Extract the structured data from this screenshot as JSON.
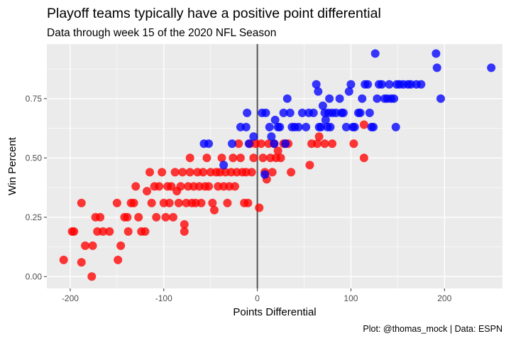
{
  "chart_data": {
    "type": "scatter",
    "title": "Playoff teams typically have a positive point differential",
    "subtitle": "Data through week 15 of the 2020 NFL Season",
    "caption": "Plot: @thomas_mock | Data: ESPN",
    "xlabel": "Points Differential",
    "ylabel": "Win Percent",
    "xlim": [
      -225,
      262
    ],
    "ylim": [
      -0.05,
      0.98
    ],
    "xticks": [
      -200,
      -100,
      0,
      100,
      200
    ],
    "xtick_labels": [
      "-200",
      "-100",
      "0",
      "100",
      "200"
    ],
    "yticks": [
      0,
      0.25,
      0.5,
      0.75
    ],
    "ytick_labels": [
      "0.00",
      "0.25",
      "0.50",
      "0.75"
    ],
    "vline_x": 0,
    "grid": true,
    "legend": "none",
    "colors": {
      "panel": "#ebebeb",
      "grid": "#ffffff",
      "vline": "#555555"
    },
    "series": [
      {
        "color": "#ff0000",
        "points": [
          [
            -207,
            0.07
          ],
          [
            -198,
            0.19
          ],
          [
            -196,
            0.19
          ],
          [
            -188,
            0.06
          ],
          [
            -188,
            0.31
          ],
          [
            -184,
            0.13
          ],
          [
            -177,
            0.0
          ],
          [
            -176,
            0.13
          ],
          [
            -173,
            0.25
          ],
          [
            -171,
            0.19
          ],
          [
            -168,
            0.25
          ],
          [
            -165,
            0.19
          ],
          [
            -158,
            0.19
          ],
          [
            -150,
            0.31
          ],
          [
            -149,
            0.07
          ],
          [
            -146,
            0.13
          ],
          [
            -142,
            0.25
          ],
          [
            -139,
            0.25
          ],
          [
            -138,
            0.19
          ],
          [
            -135,
            0.31
          ],
          [
            -132,
            0.31
          ],
          [
            -130,
            0.38
          ],
          [
            -127,
            0.25
          ],
          [
            -124,
            0.19
          ],
          [
            -120,
            0.19
          ],
          [
            -118,
            0.36
          ],
          [
            -115,
            0.44
          ],
          [
            -113,
            0.31
          ],
          [
            -110,
            0.38
          ],
          [
            -108,
            0.25
          ],
          [
            -105,
            0.38
          ],
          [
            -102,
            0.44
          ],
          [
            -100,
            0.31
          ],
          [
            -98,
            0.25
          ],
          [
            -96,
            0.38
          ],
          [
            -94,
            0.31
          ],
          [
            -92,
            0.38
          ],
          [
            -90,
            0.25
          ],
          [
            -88,
            0.44
          ],
          [
            -86,
            0.36
          ],
          [
            -84,
            0.31
          ],
          [
            -82,
            0.38
          ],
          [
            -80,
            0.44
          ],
          [
            -78,
            0.22
          ],
          [
            -78,
            0.19
          ],
          [
            -76,
            0.31
          ],
          [
            -74,
            0.38
          ],
          [
            -72,
            0.44
          ],
          [
            -72,
            0.5
          ],
          [
            -70,
            0.31
          ],
          [
            -68,
            0.38
          ],
          [
            -66,
            0.31
          ],
          [
            -64,
            0.44
          ],
          [
            -62,
            0.38
          ],
          [
            -60,
            0.31
          ],
          [
            -58,
            0.44
          ],
          [
            -56,
            0.38
          ],
          [
            -54,
            0.5
          ],
          [
            -52,
            0.38
          ],
          [
            -50,
            0.44
          ],
          [
            -48,
            0.31
          ],
          [
            -46,
            0.28
          ],
          [
            -44,
            0.44
          ],
          [
            -42,
            0.38
          ],
          [
            -40,
            0.44
          ],
          [
            -38,
            0.5
          ],
          [
            -36,
            0.38
          ],
          [
            -34,
            0.44
          ],
          [
            -32,
            0.31
          ],
          [
            -30,
            0.38
          ],
          [
            -28,
            0.44
          ],
          [
            -26,
            0.5
          ],
          [
            -24,
            0.38
          ],
          [
            -22,
            0.44
          ],
          [
            -20,
            0.56
          ],
          [
            -18,
            0.5
          ],
          [
            -16,
            0.44
          ],
          [
            -14,
            0.31
          ],
          [
            -12,
            0.44
          ],
          [
            -10,
            0.31
          ],
          [
            -8,
            0.56
          ],
          [
            -6,
            0.44
          ],
          [
            -4,
            0.5
          ],
          [
            -2,
            0.56
          ],
          [
            2,
            0.29
          ],
          [
            4,
            0.56
          ],
          [
            6,
            0.5
          ],
          [
            8,
            0.44
          ],
          [
            10,
            0.41
          ],
          [
            12,
            0.56
          ],
          [
            14,
            0.5
          ],
          [
            16,
            0.44
          ],
          [
            18,
            0.56
          ],
          [
            20,
            0.5
          ],
          [
            22,
            0.53
          ],
          [
            25,
            0.5
          ],
          [
            28,
            0.56
          ],
          [
            30,
            0.56
          ],
          [
            33,
            0.56
          ],
          [
            36,
            0.44
          ],
          [
            56,
            0.47
          ],
          [
            58,
            0.56
          ],
          [
            64,
            0.56
          ],
          [
            66,
            0.59
          ],
          [
            72,
            0.56
          ],
          [
            80,
            0.56
          ],
          [
            103,
            0.56
          ],
          [
            114,
            0.64
          ],
          [
            114,
            0.5
          ]
        ]
      },
      {
        "color": "#0000ff",
        "points": [
          [
            -57,
            0.56
          ],
          [
            -52,
            0.56
          ],
          [
            -36,
            0.47
          ],
          [
            -27,
            0.56
          ],
          [
            -18,
            0.63
          ],
          [
            -11,
            0.69
          ],
          [
            -12,
            0.63
          ],
          [
            -9,
            0.56
          ],
          [
            -4,
            0.59
          ],
          [
            5,
            0.69
          ],
          [
            8,
            0.43
          ],
          [
            9,
            0.69
          ],
          [
            13,
            0.63
          ],
          [
            15,
            0.59
          ],
          [
            18,
            0.56
          ],
          [
            19,
            0.66
          ],
          [
            22,
            0.63
          ],
          [
            24,
            0.63
          ],
          [
            28,
            0.69
          ],
          [
            30,
            0.56
          ],
          [
            32,
            0.75
          ],
          [
            35,
            0.69
          ],
          [
            37,
            0.63
          ],
          [
            40,
            0.63
          ],
          [
            44,
            0.63
          ],
          [
            48,
            0.69
          ],
          [
            52,
            0.63
          ],
          [
            55,
            0.69
          ],
          [
            60,
            0.69
          ],
          [
            63,
            0.81
          ],
          [
            65,
            0.78
          ],
          [
            66,
            0.63
          ],
          [
            68,
            0.63
          ],
          [
            70,
            0.72
          ],
          [
            72,
            0.69
          ],
          [
            73,
            0.66
          ],
          [
            75,
            0.63
          ],
          [
            76,
            0.69
          ],
          [
            77,
            0.75
          ],
          [
            78,
            0.63
          ],
          [
            80,
            0.69
          ],
          [
            84,
            0.69
          ],
          [
            88,
            0.75
          ],
          [
            90,
            0.69
          ],
          [
            92,
            0.69
          ],
          [
            95,
            0.63
          ],
          [
            98,
            0.78
          ],
          [
            100,
            0.81
          ],
          [
            102,
            0.63
          ],
          [
            104,
            0.63
          ],
          [
            108,
            0.69
          ],
          [
            110,
            0.69
          ],
          [
            112,
            0.75
          ],
          [
            115,
            0.81
          ],
          [
            118,
            0.81
          ],
          [
            120,
            0.69
          ],
          [
            122,
            0.63
          ],
          [
            124,
            0.63
          ],
          [
            126,
            0.94
          ],
          [
            128,
            0.75
          ],
          [
            130,
            0.81
          ],
          [
            133,
            0.81
          ],
          [
            136,
            0.75
          ],
          [
            139,
            0.75
          ],
          [
            141,
            0.81
          ],
          [
            143,
            0.75
          ],
          [
            146,
            0.75
          ],
          [
            148,
            0.63
          ],
          [
            149,
            0.81
          ],
          [
            152,
            0.81
          ],
          [
            156,
            0.81
          ],
          [
            161,
            0.81
          ],
          [
            164,
            0.81
          ],
          [
            170,
            0.81
          ],
          [
            175,
            0.81
          ],
          [
            191,
            0.94
          ],
          [
            192,
            0.88
          ],
          [
            196,
            0.75
          ],
          [
            250,
            0.88
          ]
        ]
      }
    ]
  }
}
